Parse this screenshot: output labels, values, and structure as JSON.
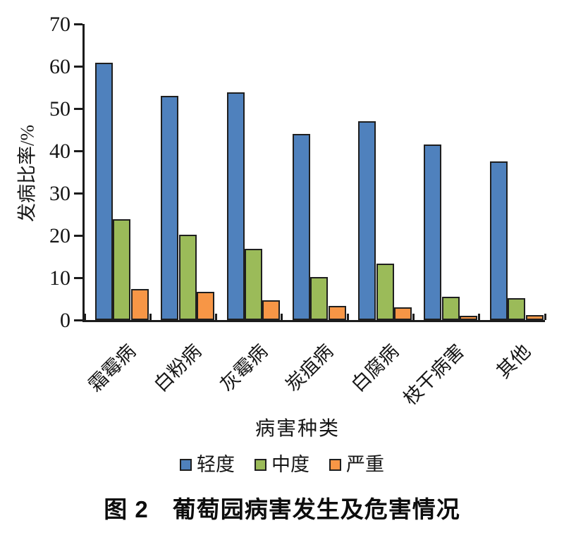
{
  "caption": {
    "text": "图 2　葡萄园病害发生及危害情况"
  },
  "chart_data": {
    "type": "bar",
    "title": "图 2　葡萄园病害发生及危害情况",
    "xlabel": "病害种类",
    "ylabel": "发病比率/%",
    "ylim": [
      0,
      70
    ],
    "y_ticks": [
      0,
      10,
      20,
      30,
      40,
      50,
      60,
      70
    ],
    "grid": false,
    "legend_position": "bottom",
    "categories": [
      "霜霉病",
      "白粉病",
      "灰霉病",
      "炭疽病",
      "白腐病",
      "枝干病害",
      "其他"
    ],
    "category_slugs": [
      "downy-mildew",
      "powdery-mildew",
      "gray-mold",
      "anthracnose",
      "white-rot",
      "trunk-disease",
      "others"
    ],
    "series": [
      {
        "name": "轻度",
        "slug": "mild",
        "color": "#4F81BD",
        "values": [
          60.8,
          53.0,
          53.8,
          44.0,
          47.0,
          41.5,
          37.5
        ]
      },
      {
        "name": "中度",
        "slug": "moderate",
        "color": "#9BBB59",
        "values": [
          23.8,
          20.2,
          16.8,
          10.2,
          13.3,
          5.5,
          5.2
        ]
      },
      {
        "name": "严重",
        "slug": "severe",
        "color": "#F79646",
        "values": [
          7.3,
          6.6,
          4.7,
          3.3,
          3.0,
          1.0,
          1.2
        ]
      }
    ]
  }
}
